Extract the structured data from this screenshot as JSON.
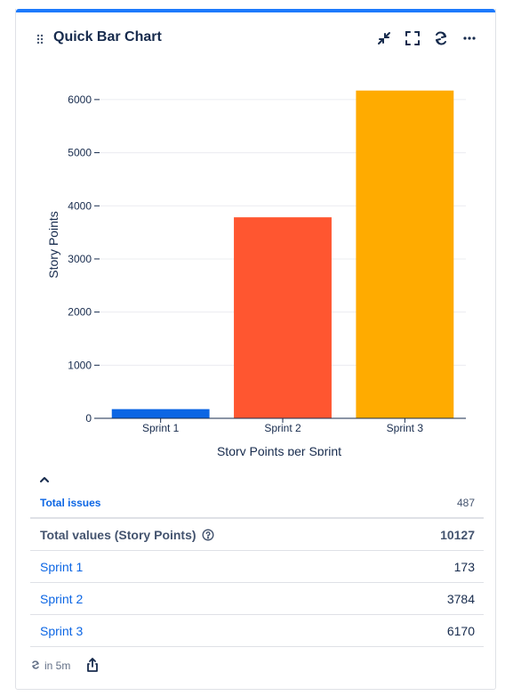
{
  "gadget": {
    "title": "Quick Bar Chart",
    "accent_color": "#1d7afc",
    "icons": [
      "drag-handle-icon",
      "minimize-icon",
      "fullscreen-icon",
      "refresh-icon",
      "more-icon"
    ]
  },
  "chart_data": {
    "type": "bar",
    "categories": [
      "Sprint 1",
      "Sprint 2",
      "Sprint 3"
    ],
    "values": [
      173,
      3784,
      6170
    ],
    "colors": [
      "#0c66e4",
      "#ff5630",
      "#ffab00"
    ],
    "xlabel": "Story Points per Sprint",
    "ylabel": "Story Points",
    "yticks": [
      0,
      1000,
      2000,
      3000,
      4000,
      5000,
      6000
    ],
    "ylim": [
      0,
      6400
    ],
    "grid": true
  },
  "summary": {
    "total_issues_label": "Total issues",
    "total_issues_value": "487",
    "total_values_label": "Total values (Story Points)",
    "total_values_value": "10127",
    "rows": [
      {
        "label": "Sprint 1",
        "value": "173"
      },
      {
        "label": "Sprint 2",
        "value": "3784"
      },
      {
        "label": "Sprint 3",
        "value": "6170"
      }
    ]
  },
  "footer": {
    "refresh_text": "in 5m"
  }
}
